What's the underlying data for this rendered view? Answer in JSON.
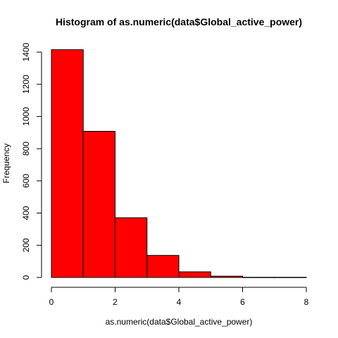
{
  "chart_data": {
    "type": "bar",
    "title": "Histogram of as.numeric(data$Global_active_power)",
    "xlabel": "as.numeric(data$Global_active_power)",
    "ylabel": "Frequency",
    "bins": [
      {
        "start": 0,
        "end": 1,
        "count": 1415
      },
      {
        "start": 1,
        "end": 2,
        "count": 908
      },
      {
        "start": 2,
        "end": 3,
        "count": 371
      },
      {
        "start": 3,
        "end": 4,
        "count": 137
      },
      {
        "start": 4,
        "end": 5,
        "count": 35
      },
      {
        "start": 5,
        "end": 6,
        "count": 8
      },
      {
        "start": 6,
        "end": 7,
        "count": 1
      },
      {
        "start": 7,
        "end": 8,
        "count": 1
      }
    ],
    "xlim": [
      0,
      8
    ],
    "ylim": [
      0,
      1400
    ],
    "x_ticks": [
      "0",
      "2",
      "4",
      "6",
      "8"
    ],
    "y_ticks": [
      "0",
      "200",
      "400",
      "600",
      "800",
      "1000",
      "1200",
      "1400"
    ],
    "bar_color": "#ff0000",
    "grid": false
  }
}
